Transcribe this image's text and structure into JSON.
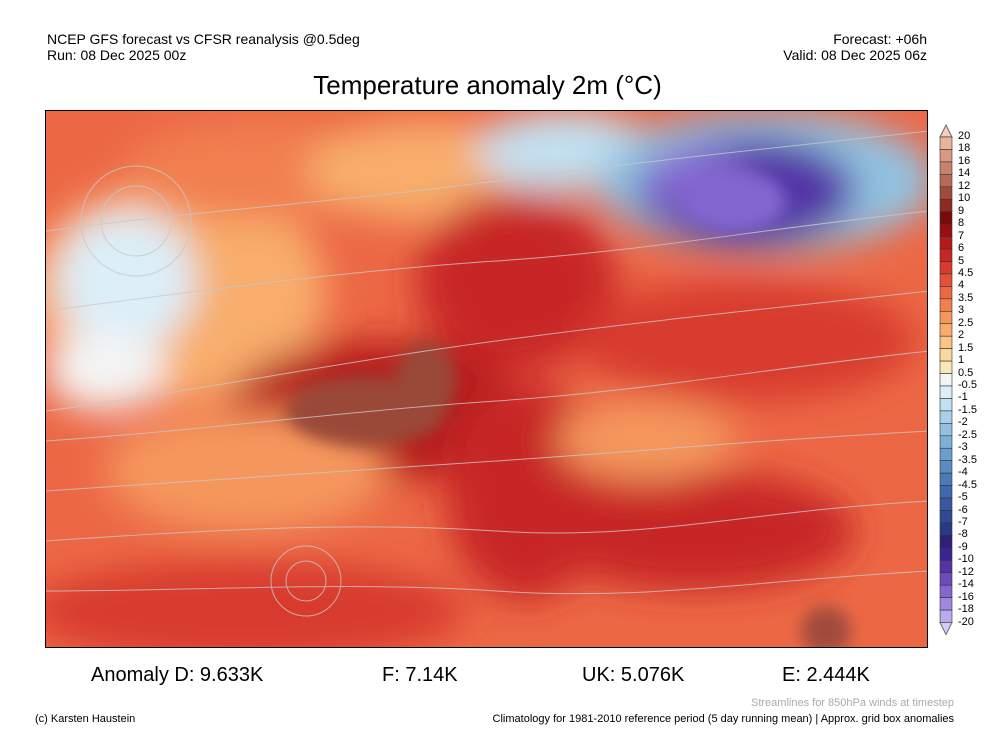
{
  "header": {
    "line1_left": "NCEP GFS forecast vs CFSR reanalysis @0.5deg",
    "line2_left": "Run: 08 Dec 2025 00z",
    "line1_right": "Forecast: +06h",
    "line2_right": "Valid: 08 Dec 2025 06z"
  },
  "title": "Temperature anomaly 2m (°C)",
  "stats": [
    {
      "label": "Anomaly D: 9.633K"
    },
    {
      "label": "F: 7.14K"
    },
    {
      "label": "UK: 5.076K"
    },
    {
      "label": "E: 2.444K"
    }
  ],
  "footer": {
    "streamlines": "Streamlines for 850hPa winds at timestep",
    "copyright": "(c) Karsten Haustein",
    "climatology": "Climatology for 1981-2010 reference period (5 day running mean) | Approx. grid box anomalies"
  },
  "colorbar": {
    "labels": [
      "20",
      "18",
      "16",
      "14",
      "12",
      "10",
      "9",
      "8",
      "7",
      "6",
      "5",
      "4.5",
      "4",
      "3.5",
      "3",
      "2.5",
      "2",
      "1.5",
      "1",
      "0.5",
      "-0.5",
      "-1",
      "-1.5",
      "-2",
      "-2.5",
      "-3",
      "-3.5",
      "-4",
      "-4.5",
      "-5",
      "-6",
      "-7",
      "-8",
      "-9",
      "-10",
      "-12",
      "-14",
      "-16",
      "-18",
      "-20"
    ],
    "colors": [
      "#f3cdb8",
      "#e8b59b",
      "#d99a80",
      "#c9826a",
      "#b86a55",
      "#a24b3c",
      "#8f2a22",
      "#7a0a0a",
      "#9a0d10",
      "#b51a1c",
      "#c82525",
      "#d83a2e",
      "#e4503a",
      "#ec6845",
      "#f17f4f",
      "#f5975d",
      "#f8ad6c",
      "#fbc482",
      "#fbd89b",
      "#f8e8b8",
      "#f4f4f4",
      "#dceef8",
      "#c2e0f0",
      "#a8d0e8",
      "#92c2e0",
      "#7cb0d6",
      "#6a9ecc",
      "#5a8cc2",
      "#4c7ab8",
      "#4068ae",
      "#3858a2",
      "#304896",
      "#2a3888",
      "#2c207a",
      "#3c2490",
      "#5234a6",
      "#6a4cbc",
      "#8466d0",
      "#a088e0",
      "#bcaaee",
      "#d8ccf6"
    ]
  }
}
